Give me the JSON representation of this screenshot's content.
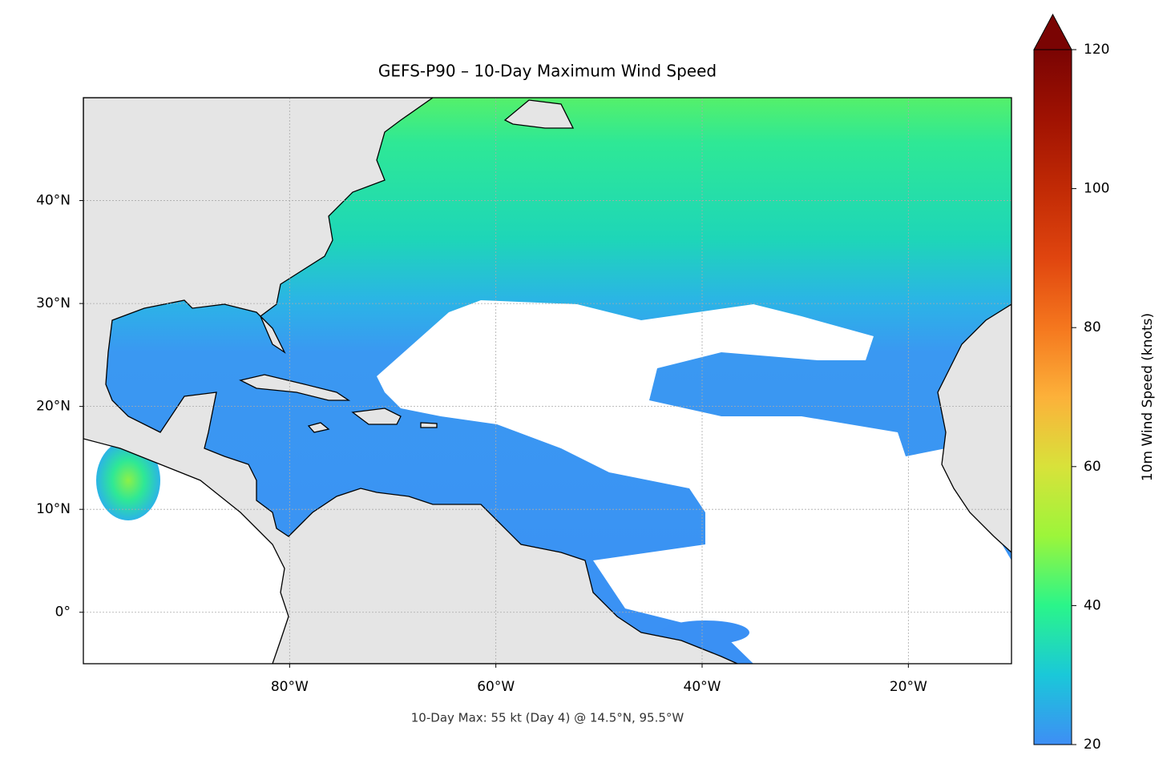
{
  "map": {
    "title": "GEFS-P90 – 10-Day Maximum Wind Speed",
    "annotation": "10-Day Max: 55 kt (Day 4) @ 14.5°N, 95.5°W",
    "lon_range": [
      -100,
      -10
    ],
    "lat_range": [
      -5,
      50
    ],
    "lon_ticks": [
      {
        "value": -80,
        "label": "80°W"
      },
      {
        "value": -60,
        "label": "60°W"
      },
      {
        "value": -40,
        "label": "40°W"
      },
      {
        "value": -20,
        "label": "20°W"
      }
    ],
    "lat_ticks": [
      {
        "value": 0,
        "label": "0°"
      },
      {
        "value": 10,
        "label": "10°N"
      },
      {
        "value": 20,
        "label": "20°N"
      },
      {
        "value": 30,
        "label": "30°N"
      },
      {
        "value": 40,
        "label": "40°N"
      }
    ],
    "colorbar": {
      "label": "10m Wind Speed (knots)",
      "range": [
        20,
        120
      ],
      "ticks": [
        20,
        40,
        60,
        80,
        100,
        120
      ]
    }
  }
}
